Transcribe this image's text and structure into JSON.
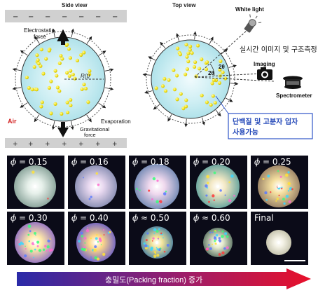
{
  "schematic": {
    "side_title": "Side view",
    "top_title": "Top view",
    "plate_top_signs": [
      "−",
      "−",
      "−",
      "−",
      "−",
      "−",
      "−"
    ],
    "plate_bottom_signs": [
      "+",
      "+",
      "+",
      "+",
      "+",
      "+",
      "+"
    ],
    "electrostatic_label": "Electrostatic force",
    "radius_label": "R(t)",
    "air_label": "Air",
    "evaporation_label": "Evaporation",
    "gravitational_label": "Gravitational force",
    "white_light_label": "White light",
    "realtime_label": "실시간 이미지 및 구조측정",
    "imaging_label": "Imaging",
    "spectrometer_label": "Spectrometer",
    "angle_label": "2θ",
    "angle_label_2": "2θ",
    "note_line1": "단백질 및 고분자 입자",
    "note_line2": "사용가능"
  },
  "photos": [
    {
      "prefix": "ϕ",
      "op": "=",
      "value": "0.15"
    },
    {
      "prefix": "ϕ",
      "op": "=",
      "value": "0.16"
    },
    {
      "prefix": "ϕ",
      "op": "=",
      "value": "0.18"
    },
    {
      "prefix": "ϕ",
      "op": "=",
      "value": "0.20"
    },
    {
      "prefix": "ϕ",
      "op": "=",
      "value": "0.25"
    },
    {
      "prefix": "ϕ",
      "op": "=",
      "value": "0.30"
    },
    {
      "prefix": "ϕ",
      "op": "=",
      "value": "0.40"
    },
    {
      "prefix": "ϕ",
      "op": "≈",
      "value": "0.50"
    },
    {
      "prefix": "ϕ",
      "op": "≈",
      "value": "0.60"
    },
    {
      "prefix": "",
      "op": "",
      "value": "Final"
    }
  ],
  "arrow_label": "충밀도(Packing fraction) 증가",
  "colors": {
    "droplet_fill": "#c9ecf2",
    "particle": "#f2e21a",
    "arrow_start": "#2a2aa8",
    "arrow_end": "#e8102a",
    "air_text": "#d21f1f",
    "note_border": "#2f55c8",
    "note_text": "#2146b8"
  }
}
